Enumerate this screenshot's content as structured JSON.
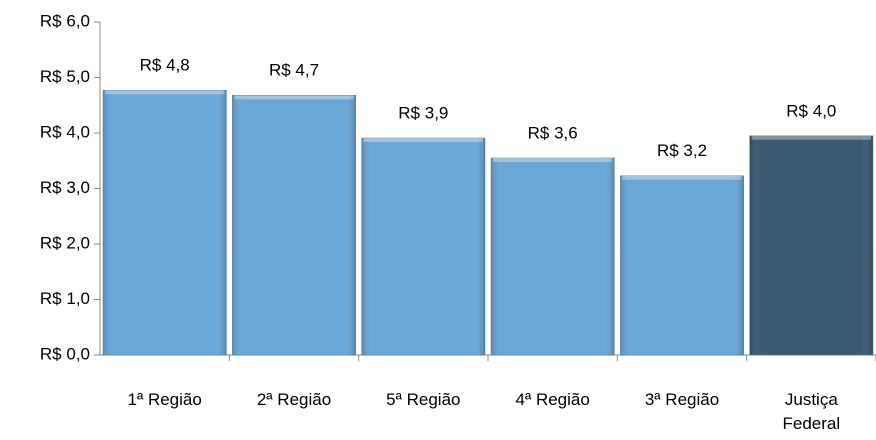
{
  "chart_data": {
    "type": "bar",
    "categories": [
      "1ª Região",
      "2ª Região",
      "5ª Região",
      "4ª Região",
      "3ª Região",
      "Justiça Federal"
    ],
    "values": [
      4.77,
      4.68,
      3.91,
      3.55,
      3.23,
      3.95
    ],
    "value_labels": [
      "R$ 4,8",
      "R$ 4,7",
      "R$ 3,9",
      "R$ 3,6",
      "R$ 3,2",
      "R$ 4,0"
    ],
    "colors": [
      "#6aa6d6",
      "#6aa6d6",
      "#6aa6d6",
      "#6aa6d6",
      "#6aa6d6",
      "#3b5870"
    ],
    "ylim": [
      0,
      6
    ],
    "yticks": [
      {
        "value": 0,
        "label": "R$ 0,0"
      },
      {
        "value": 1,
        "label": "R$ 1,0"
      },
      {
        "value": 2,
        "label": "R$ 2,0"
      },
      {
        "value": 3,
        "label": "R$ 3,0"
      },
      {
        "value": 4,
        "label": "R$ 4,0"
      },
      {
        "value": 5,
        "label": "R$ 5,0"
      },
      {
        "value": 6,
        "label": "R$ 6,0"
      }
    ],
    "grid": false
  }
}
